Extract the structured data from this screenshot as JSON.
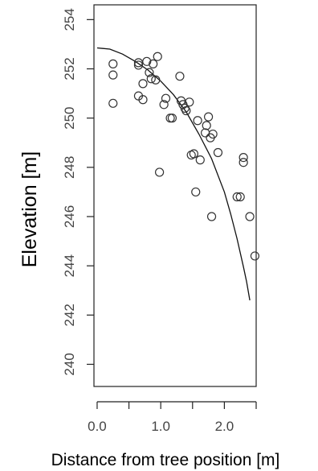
{
  "chart_data": {
    "type": "scatter",
    "xlabel": "Distance from tree position [m]",
    "ylabel": "Elevation  [m]",
    "xlim": [
      -0.05,
      2.5
    ],
    "ylim": [
      239.1,
      254.6
    ],
    "x_ticks": [
      0.0,
      1.0,
      2.0
    ],
    "x_tick_labels": [
      "0.0",
      "1.0",
      "2.0"
    ],
    "x_minor_ticks": [
      0.0,
      0.5,
      1.0,
      1.5,
      2.0,
      2.5
    ],
    "y_ticks": [
      240,
      242,
      244,
      246,
      248,
      250,
      252,
      254
    ],
    "y_tick_labels": [
      "240",
      "242",
      "244",
      "246",
      "248",
      "250",
      "252",
      "254"
    ],
    "grid": false,
    "points": [
      {
        "x": 0.25,
        "y": 252.2
      },
      {
        "x": 0.25,
        "y": 251.75
      },
      {
        "x": 0.25,
        "y": 250.6
      },
      {
        "x": 0.65,
        "y": 252.25
      },
      {
        "x": 0.65,
        "y": 252.15
      },
      {
        "x": 0.65,
        "y": 250.9
      },
      {
        "x": 0.72,
        "y": 251.4
      },
      {
        "x": 0.72,
        "y": 250.75
      },
      {
        "x": 0.78,
        "y": 252.3
      },
      {
        "x": 0.82,
        "y": 251.85
      },
      {
        "x": 0.85,
        "y": 251.6
      },
      {
        "x": 0.88,
        "y": 252.2
      },
      {
        "x": 0.92,
        "y": 251.55
      },
      {
        "x": 0.95,
        "y": 252.5
      },
      {
        "x": 0.98,
        "y": 247.8
      },
      {
        "x": 1.05,
        "y": 250.55
      },
      {
        "x": 1.08,
        "y": 250.8
      },
      {
        "x": 1.15,
        "y": 250.0
      },
      {
        "x": 1.18,
        "y": 250.0
      },
      {
        "x": 1.3,
        "y": 251.7
      },
      {
        "x": 1.32,
        "y": 250.7
      },
      {
        "x": 1.35,
        "y": 250.55
      },
      {
        "x": 1.38,
        "y": 250.4
      },
      {
        "x": 1.4,
        "y": 250.3
      },
      {
        "x": 1.45,
        "y": 250.65
      },
      {
        "x": 1.48,
        "y": 248.5
      },
      {
        "x": 1.52,
        "y": 248.55
      },
      {
        "x": 1.55,
        "y": 247.0
      },
      {
        "x": 1.58,
        "y": 249.9
      },
      {
        "x": 1.62,
        "y": 248.3
      },
      {
        "x": 1.7,
        "y": 249.4
      },
      {
        "x": 1.72,
        "y": 249.7
      },
      {
        "x": 1.75,
        "y": 250.05
      },
      {
        "x": 1.78,
        "y": 249.2
      },
      {
        "x": 1.8,
        "y": 246.0
      },
      {
        "x": 1.82,
        "y": 249.35
      },
      {
        "x": 1.9,
        "y": 248.6
      },
      {
        "x": 2.2,
        "y": 246.8
      },
      {
        "x": 2.25,
        "y": 246.8
      },
      {
        "x": 2.3,
        "y": 248.4
      },
      {
        "x": 2.3,
        "y": 248.2
      },
      {
        "x": 2.4,
        "y": 246.0
      },
      {
        "x": 2.48,
        "y": 244.4
      }
    ],
    "fit_curve": {
      "x": [
        0.0,
        0.2,
        0.4,
        0.6,
        0.8,
        1.0,
        1.2,
        1.4,
        1.6,
        1.8,
        2.0,
        2.1,
        2.2,
        2.3,
        2.35,
        2.4
      ],
      "y": [
        252.85,
        252.8,
        252.6,
        252.3,
        251.95,
        251.5,
        250.95,
        250.25,
        249.35,
        248.35,
        247.0,
        246.1,
        245.1,
        243.95,
        243.35,
        242.6
      ]
    }
  }
}
